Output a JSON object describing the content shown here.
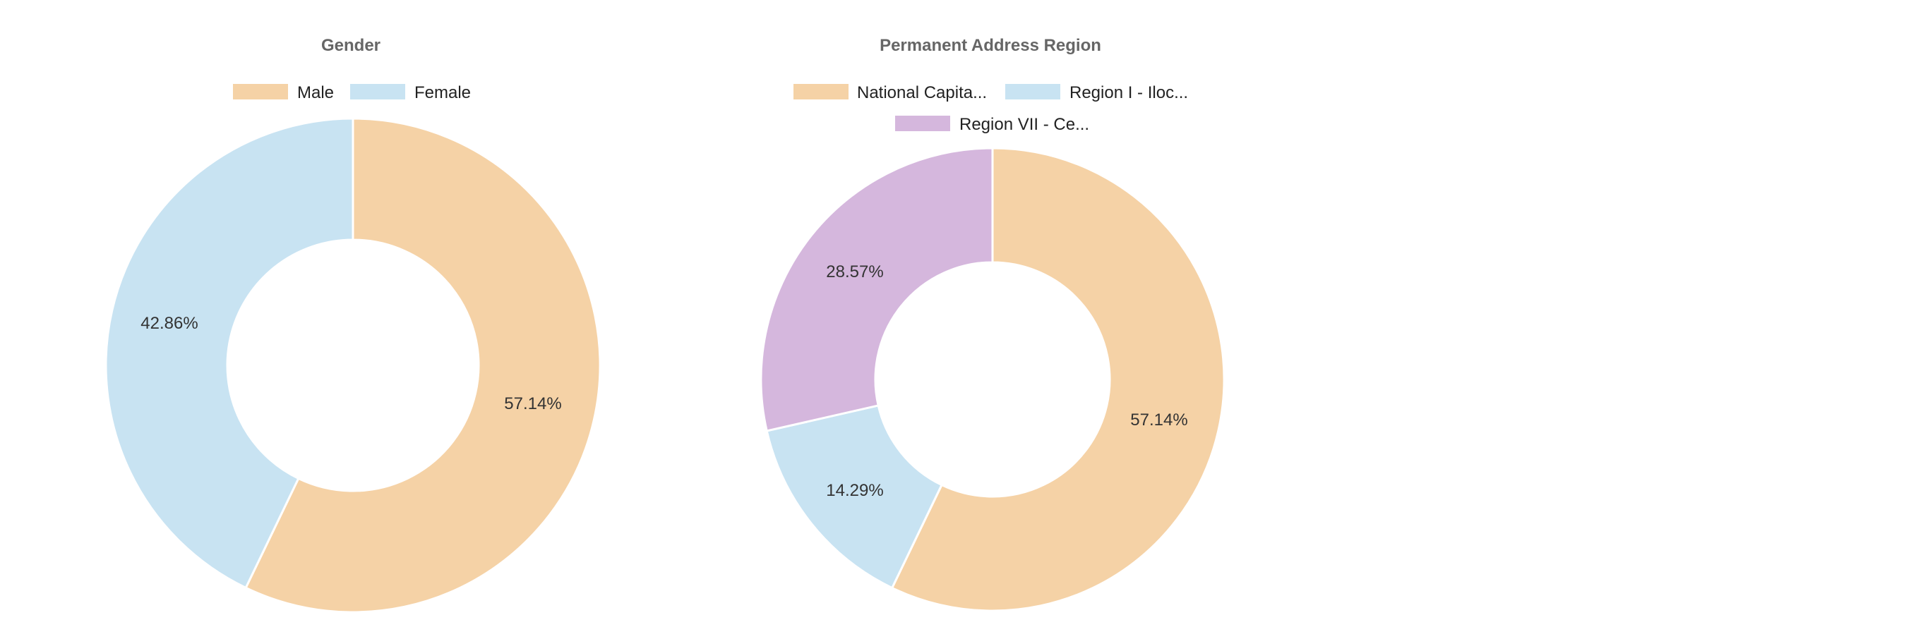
{
  "chart_data": [
    {
      "type": "pie",
      "variant": "doughnut",
      "title": "Gender",
      "legend_position": "top",
      "start": "top-clockwise",
      "slices": [
        {
          "label": "Male",
          "value": 57.14,
          "display": "57.14%",
          "color": "#f5d2a6"
        },
        {
          "label": "Female",
          "value": 42.86,
          "display": "42.86%",
          "color": "#c8e3f2"
        }
      ]
    },
    {
      "type": "pie",
      "variant": "doughnut",
      "title": "Permanent Address Region",
      "legend_position": "top",
      "start": "top-clockwise",
      "slices": [
        {
          "label": "National Capita...",
          "value": 57.14,
          "display": "57.14%",
          "color": "#f5d2a6"
        },
        {
          "label": "Region I - Iloc...",
          "value": 14.29,
          "display": "14.29%",
          "color": "#c8e3f2"
        },
        {
          "label": "Region VII - Ce...",
          "value": 28.57,
          "display": "28.57%",
          "color": "#d5b7dd"
        }
      ]
    }
  ]
}
